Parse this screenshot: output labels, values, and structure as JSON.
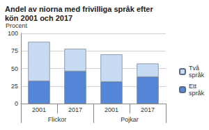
{
  "chart_data": {
    "type": "bar",
    "title": "Andel av niorna med frivilliga språk efter kön 2001 och 2017",
    "y_label": "Procent",
    "categories": [
      "2001",
      "2017",
      "2001",
      "2017"
    ],
    "groups": [
      "Flickor",
      "Flickor",
      "Pojkar",
      "Pojkar"
    ],
    "series": [
      {
        "name": "Ett språk",
        "color": "#5487d8",
        "values": [
          32,
          46,
          31,
          38
        ]
      },
      {
        "name": "Två språk",
        "color": "#c6daf2",
        "values": [
          56,
          32,
          39,
          19
        ]
      }
    ],
    "stacked": true,
    "ylim": [
      0,
      100
    ],
    "yticks": [
      0,
      25,
      50,
      75,
      100
    ],
    "grid": true,
    "legend": "right"
  }
}
